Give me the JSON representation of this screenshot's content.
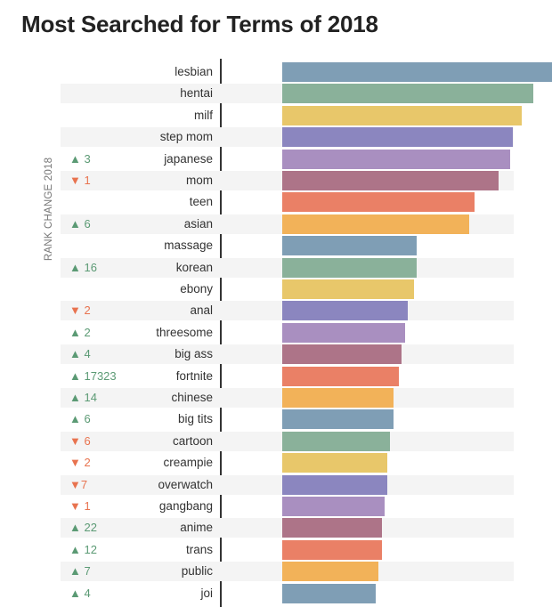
{
  "chart_data": {
    "type": "bar",
    "orientation": "horizontal",
    "title": "Most Searched for Terms of 2018",
    "side_label": "RANK CHANGE 2018",
    "xlim": [
      0,
      100
    ],
    "categories": [
      "lesbian",
      "hentai",
      "milf",
      "step mom",
      "japanese",
      "mom",
      "teen",
      "asian",
      "massage",
      "korean",
      "ebony",
      "anal",
      "threesome",
      "big ass",
      "fortnite",
      "chinese",
      "big tits",
      "cartoon",
      "creampie",
      "overwatch",
      "gangbang",
      "anime",
      "trans",
      "public",
      "joi"
    ],
    "values": [
      100,
      86,
      82,
      79,
      78,
      74,
      66,
      64,
      46,
      46,
      45,
      43,
      42,
      41,
      40,
      38,
      38,
      37,
      36,
      36,
      35,
      34,
      34,
      33,
      32
    ],
    "rank_change": [
      {
        "dir": "",
        "text": ""
      },
      {
        "dir": "",
        "text": ""
      },
      {
        "dir": "",
        "text": ""
      },
      {
        "dir": "",
        "text": ""
      },
      {
        "dir": "up",
        "text": "▲ 3"
      },
      {
        "dir": "down",
        "text": "▼ 1"
      },
      {
        "dir": "",
        "text": ""
      },
      {
        "dir": "up",
        "text": "▲ 6"
      },
      {
        "dir": "",
        "text": ""
      },
      {
        "dir": "up",
        "text": "▲ 16"
      },
      {
        "dir": "",
        "text": ""
      },
      {
        "dir": "down",
        "text": "▼ 2"
      },
      {
        "dir": "up",
        "text": "▲ 2"
      },
      {
        "dir": "up",
        "text": "▲ 4"
      },
      {
        "dir": "up",
        "text": "▲ 17323"
      },
      {
        "dir": "up",
        "text": "▲ 14"
      },
      {
        "dir": "up",
        "text": "▲ 6"
      },
      {
        "dir": "down",
        "text": "▼ 6"
      },
      {
        "dir": "down",
        "text": "▼ 2"
      },
      {
        "dir": "down",
        "text": "▼7"
      },
      {
        "dir": "down",
        "text": "▼ 1"
      },
      {
        "dir": "up",
        "text": "▲ 22"
      },
      {
        "dir": "up",
        "text": "▲ 12"
      },
      {
        "dir": "up",
        "text": "▲ 7"
      },
      {
        "dir": "up",
        "text": "▲ 4"
      }
    ],
    "palette": [
      "#7f9eb5",
      "#8ab19a",
      "#e8c76a",
      "#8b86bf",
      "#a98fc0",
      "#ad7488",
      "#ea8066",
      "#f2b259"
    ]
  }
}
